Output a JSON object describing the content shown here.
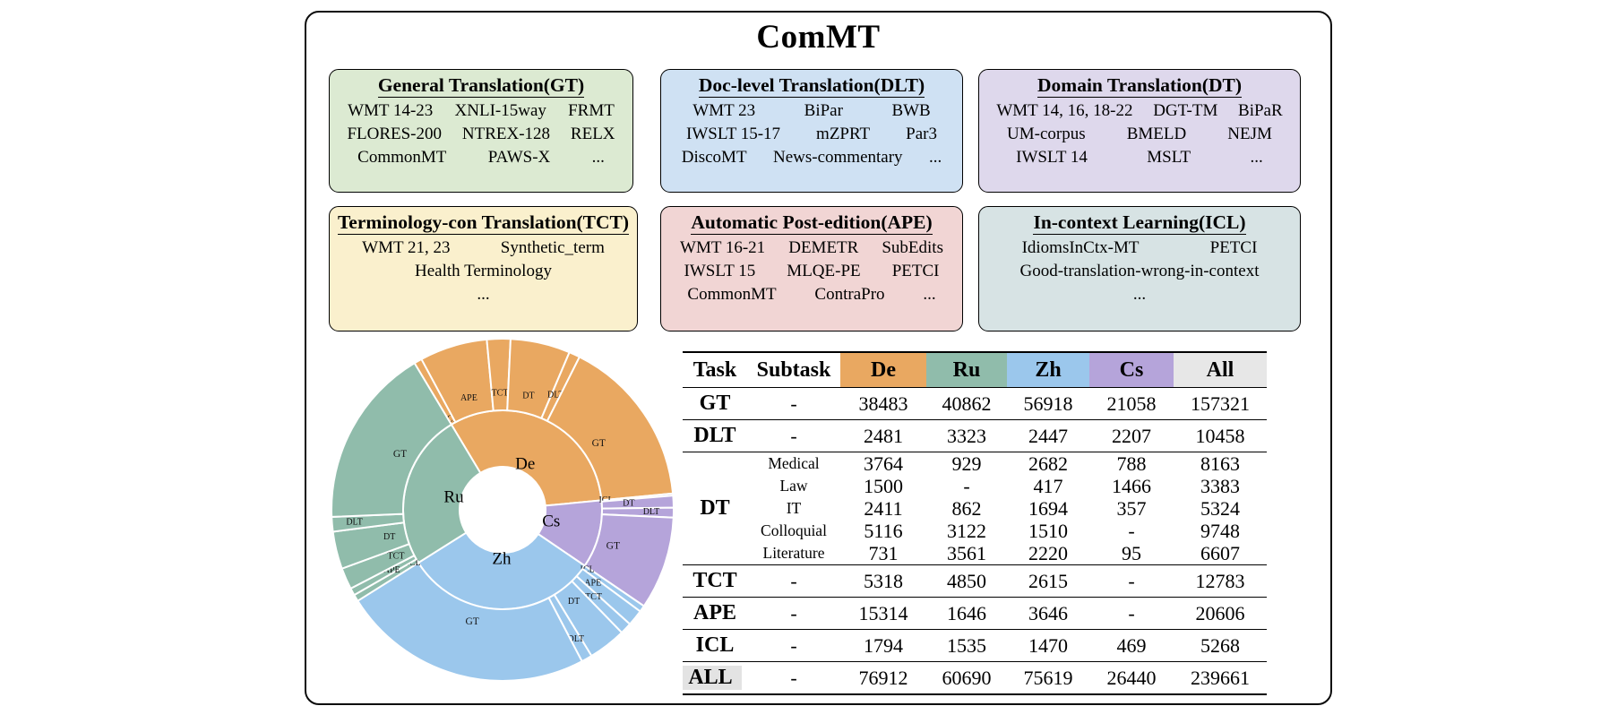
{
  "figure": {
    "title": "ComMT",
    "boxes": [
      {
        "id": "gt",
        "title": "General Translation(GT)",
        "bg": "#dcead2",
        "rows": [
          [
            "WMT 14-23",
            "XNLI-15way",
            "FRMT"
          ],
          [
            "FLORES-200",
            "NTREX-128",
            "RELX"
          ],
          [
            "CommonMT",
            "PAWS-X",
            "..."
          ]
        ]
      },
      {
        "id": "dlt",
        "title": "Doc-level Translation(DLT)",
        "bg": "#cfe1f3",
        "rows": [
          [
            "WMT 23",
            "BiPar",
            "BWB"
          ],
          [
            "IWSLT 15-17",
            "mZPRT",
            "Par3"
          ],
          [
            "DiscoMT",
            "News-commentary",
            "..."
          ]
        ]
      },
      {
        "id": "dt",
        "title": "Domain Translation(DT)",
        "bg": "#ded8ec",
        "rows": [
          [
            "WMT 14, 16, 18-22",
            "DGT-TM",
            "BiPaR"
          ],
          [
            "UM-corpus",
            "BMELD",
            "NEJM"
          ],
          [
            "IWSLT 14",
            "MSLT",
            "..."
          ]
        ]
      },
      {
        "id": "tct",
        "title": "Terminology-con Translation(TCT)",
        "bg": "#faf0cd",
        "rows": [
          [
            "WMT 21, 23",
            "Synthetic_term"
          ],
          [
            "Health Terminology"
          ],
          [
            "..."
          ]
        ]
      },
      {
        "id": "ape",
        "title": "Automatic Post-edition(APE)",
        "bg": "#f1d5d4",
        "rows": [
          [
            "WMT 16-21",
            "DEMETR",
            "SubEdits"
          ],
          [
            "IWSLT 15",
            "MLQE-PE",
            "PETCI"
          ],
          [
            "CommonMT",
            "ContraPro",
            "..."
          ]
        ]
      },
      {
        "id": "icl",
        "title": "In-context Learning(ICL)",
        "bg": "#d7e3e4",
        "rows": [
          [
            "IdiomsInCtx-MT",
            "PETCI"
          ],
          [
            "Good-translation-wrong-in-context"
          ],
          [
            "..."
          ]
        ]
      }
    ]
  },
  "chart_data": {
    "type": "sunburst",
    "inner_ring": "languages",
    "outer_ring": "tasks",
    "start_angle_deg": 329,
    "direction": "clockwise",
    "task_order_clockwise": [
      "ICL",
      "APE",
      "TCT",
      "DT",
      "DLT",
      "GT"
    ],
    "grand_total": 239661,
    "languages": [
      {
        "name": "De",
        "color": "#e9a861",
        "total": 76912,
        "tasks": {
          "GT": 38483,
          "DLT": 2481,
          "DT": 13522,
          "TCT": 5318,
          "APE": 15314,
          "ICL": 1794
        }
      },
      {
        "name": "Cs",
        "color": "#b5a4da",
        "total": 26440,
        "tasks": {
          "GT": 21058,
          "DLT": 2207,
          "DT": 2706,
          "TCT": 0,
          "APE": 0,
          "ICL": 469
        }
      },
      {
        "name": "Zh",
        "color": "#9bc7ec",
        "total": 75619,
        "tasks": {
          "GT": 56918,
          "DLT": 2447,
          "DT": 8523,
          "TCT": 2615,
          "APE": 3646,
          "ICL": 1470
        }
      },
      {
        "name": "Ru",
        "color": "#90bcab",
        "total": 60690,
        "tasks": {
          "GT": 40862,
          "DLT": 3323,
          "DT": 8474,
          "TCT": 4850,
          "APE": 1646,
          "ICL": 1535
        }
      }
    ]
  },
  "table": {
    "headers": {
      "task": "Task",
      "subtask": "Subtask"
    },
    "lang_headers": [
      {
        "label": "De",
        "color": "#e9a861"
      },
      {
        "label": "Ru",
        "color": "#90bcab"
      },
      {
        "label": "Zh",
        "color": "#9bc7ec"
      },
      {
        "label": "Cs",
        "color": "#b5a4da"
      },
      {
        "label": "All",
        "color": "#e7e7e7"
      }
    ],
    "rows": [
      {
        "task": "GT",
        "sub": [
          {
            "name": "-",
            "vals": [
              "38483",
              "40862",
              "56918",
              "21058",
              "157321"
            ]
          }
        ]
      },
      {
        "task": "DLT",
        "sub": [
          {
            "name": "-",
            "vals": [
              "2481",
              "3323",
              "2447",
              "2207",
              "10458"
            ]
          }
        ]
      },
      {
        "task": "DT",
        "sub": [
          {
            "name": "Medical",
            "vals": [
              "3764",
              "929",
              "2682",
              "788",
              "8163"
            ]
          },
          {
            "name": "Law",
            "vals": [
              "1500",
              "-",
              "417",
              "1466",
              "3383"
            ]
          },
          {
            "name": "IT",
            "vals": [
              "2411",
              "862",
              "1694",
              "357",
              "5324"
            ]
          },
          {
            "name": "Colloquial",
            "vals": [
              "5116",
              "3122",
              "1510",
              "-",
              "9748"
            ]
          },
          {
            "name": "Literature",
            "vals": [
              "731",
              "3561",
              "2220",
              "95",
              "6607"
            ]
          }
        ]
      },
      {
        "task": "TCT",
        "sub": [
          {
            "name": "-",
            "vals": [
              "5318",
              "4850",
              "2615",
              "-",
              "12783"
            ]
          }
        ]
      },
      {
        "task": "APE",
        "sub": [
          {
            "name": "-",
            "vals": [
              "15314",
              "1646",
              "3646",
              "-",
              "20606"
            ]
          }
        ]
      },
      {
        "task": "ICL",
        "sub": [
          {
            "name": "-",
            "vals": [
              "1794",
              "1535",
              "1470",
              "469",
              "5268"
            ]
          }
        ]
      },
      {
        "task": "ALL",
        "highlight": true,
        "sub": [
          {
            "name": "-",
            "vals": [
              "76912",
              "60690",
              "75619",
              "26440",
              "239661"
            ]
          }
        ]
      }
    ]
  }
}
